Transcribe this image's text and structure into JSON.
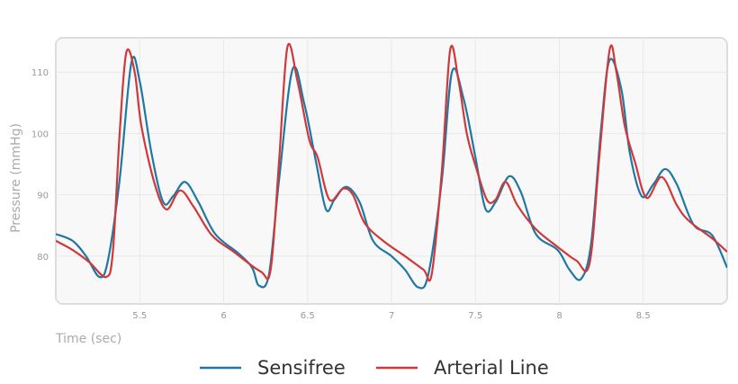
{
  "chart_data": {
    "type": "line",
    "x_label": "Time (sec)",
    "y_label": "Pressure (mmHg)",
    "xlim": [
      5.0,
      9.0
    ],
    "ylim": [
      72.2,
      115.6
    ],
    "xticks": [
      5.5,
      6,
      6.5,
      7,
      7.5,
      8,
      8.5
    ],
    "yticks": [
      80,
      90,
      100,
      110
    ],
    "grid": true,
    "legend": "bottom",
    "series": [
      {
        "name": "Sensifree",
        "color": "#1f78a4",
        "x": [
          5.0,
          5.1,
          5.18,
          5.26,
          5.31,
          5.38,
          5.45,
          5.5,
          5.57,
          5.64,
          5.7,
          5.77,
          5.85,
          5.95,
          6.09,
          6.17,
          6.21,
          6.27,
          6.33,
          6.41,
          6.48,
          6.55,
          6.61,
          6.66,
          6.73,
          6.81,
          6.89,
          7.0,
          7.08,
          7.16,
          7.22,
          7.3,
          7.36,
          7.43,
          7.5,
          7.56,
          7.62,
          7.7,
          7.77,
          7.86,
          7.99,
          8.06,
          8.13,
          8.19,
          8.25,
          8.3,
          8.37,
          8.42,
          8.49,
          8.56,
          8.63,
          8.7,
          8.8,
          8.91,
          9.0
        ],
        "values": [
          83.6,
          82.5,
          80.0,
          76.6,
          79.2,
          92.4,
          111.5,
          108.5,
          96.8,
          88.8,
          89.8,
          92.1,
          88.8,
          83.6,
          80.4,
          78.1,
          75.2,
          77.0,
          92.4,
          110.4,
          104.9,
          95.4,
          87.6,
          89.2,
          91.3,
          88.8,
          82.5,
          80.0,
          77.8,
          74.9,
          77.1,
          92.4,
          110.0,
          105.6,
          96.1,
          87.7,
          88.8,
          93.0,
          90.5,
          83.6,
          81.0,
          77.8,
          76.3,
          82.2,
          101.2,
          112.0,
          107.1,
          96.8,
          89.8,
          91.7,
          94.2,
          91.7,
          85.1,
          83.4,
          78.1
        ]
      },
      {
        "name": "Arterial Line",
        "color": "#d0383a",
        "x": [
          5.0,
          5.1,
          5.2,
          5.3,
          5.34,
          5.38,
          5.42,
          5.47,
          5.51,
          5.59,
          5.66,
          5.74,
          5.82,
          5.93,
          6.06,
          6.22,
          6.28,
          6.33,
          6.38,
          6.44,
          6.51,
          6.56,
          6.63,
          6.71,
          6.77,
          6.84,
          6.95,
          7.08,
          7.19,
          7.24,
          7.3,
          7.35,
          7.4,
          7.45,
          7.51,
          7.57,
          7.62,
          7.68,
          7.75,
          7.86,
          7.99,
          8.1,
          8.18,
          8.24,
          8.3,
          8.34,
          8.39,
          8.45,
          8.52,
          8.61,
          8.7,
          8.77,
          8.91,
          9.0
        ],
        "values": [
          82.5,
          81.0,
          79.0,
          76.6,
          80.7,
          99.8,
          113.2,
          110.0,
          101.2,
          91.7,
          87.6,
          90.7,
          88.1,
          83.4,
          80.7,
          77.5,
          77.8,
          95.4,
          114.1,
          108.5,
          99.0,
          96.1,
          89.2,
          91.0,
          90.0,
          85.4,
          82.5,
          80.0,
          77.8,
          77.1,
          93.9,
          113.7,
          108.5,
          99.8,
          93.9,
          89.1,
          89.2,
          92.1,
          88.3,
          84.4,
          81.5,
          79.3,
          78.8,
          96.8,
          113.7,
          110.0,
          101.2,
          95.4,
          89.5,
          92.9,
          88.3,
          85.8,
          82.9,
          80.7
        ]
      }
    ]
  }
}
